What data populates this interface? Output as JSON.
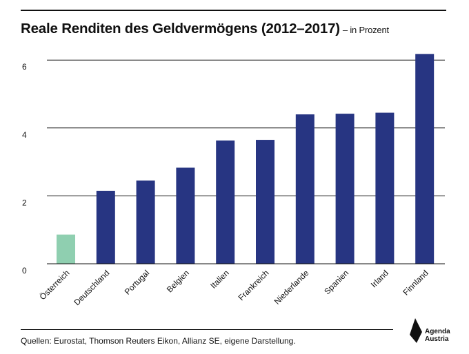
{
  "title": "Reale Renditen des Geldvermögens (2012–2017)",
  "subtitle": "– in Prozent",
  "source": "Quellen: Eurostat, Thomson Reuters Eikon, Allianz SE, eigene Darstellung.",
  "logo": {
    "line1": "Agenda",
    "line2": "Austria"
  },
  "colors": {
    "highlight": "#8fcfb0",
    "bar": "#273582",
    "grid": "#111111"
  },
  "chart_data": {
    "type": "bar",
    "title": "Reale Renditen des Geldvermögens (2012–2017)",
    "subtitle": "– in Prozent",
    "categories": [
      "Österreich",
      "Deutschland",
      "Portugal",
      "Belgien",
      "Italien",
      "Frankreich",
      "Niederlande",
      "Spanien",
      "Irland",
      "Finnland"
    ],
    "values": [
      0.86,
      2.15,
      2.45,
      2.83,
      3.63,
      3.65,
      4.4,
      4.42,
      4.45,
      6.18
    ],
    "highlight_category": "Österreich",
    "yticks": [
      0,
      2,
      4,
      6
    ],
    "ylim": [
      0,
      6.4
    ],
    "grid": true,
    "xlabel": "",
    "ylabel": ""
  }
}
